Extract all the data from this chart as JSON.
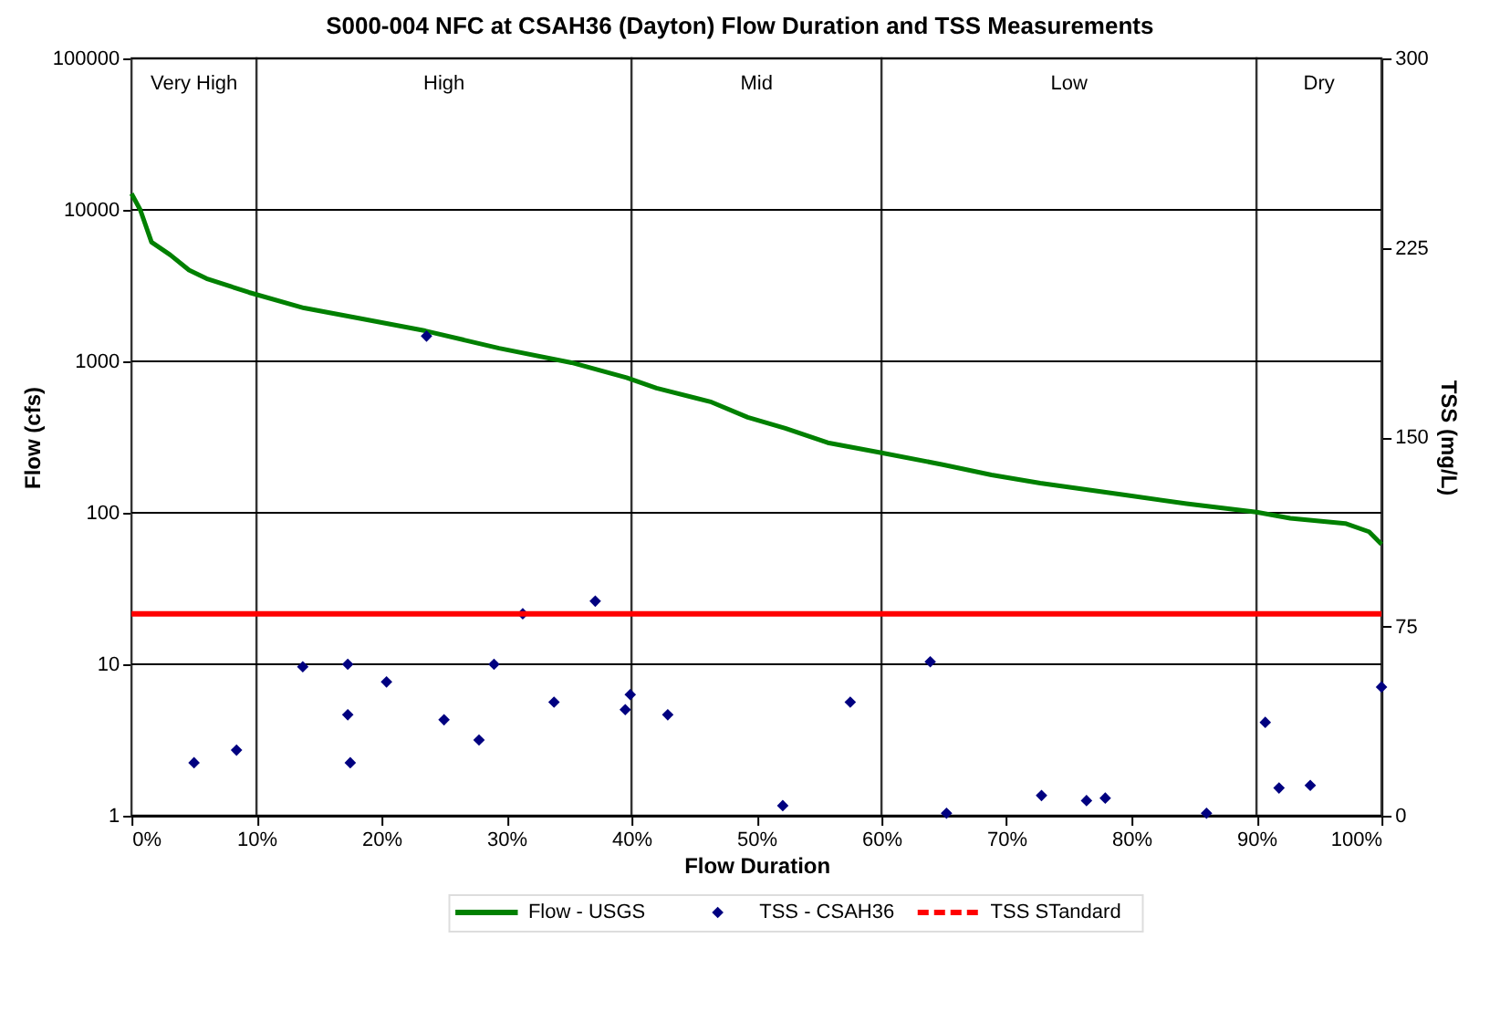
{
  "chart_data": {
    "type": "line",
    "title": "S000-004 NFC at CSAH36 (Dayton) Flow Duration and TSS Measurements",
    "xlabel": "Flow Duration",
    "ylabel": "Flow (cfs)",
    "y2label": "TSS (mg/L)",
    "xlim": [
      0,
      100
    ],
    "xticks": [
      {
        "value": 0,
        "label": "0%"
      },
      {
        "value": 10,
        "label": "10%"
      },
      {
        "value": 20,
        "label": "20%"
      },
      {
        "value": 30,
        "label": "30%"
      },
      {
        "value": 40,
        "label": "40%"
      },
      {
        "value": 50,
        "label": "50%"
      },
      {
        "value": 60,
        "label": "60%"
      },
      {
        "value": 70,
        "label": "70%"
      },
      {
        "value": 80,
        "label": "80%"
      },
      {
        "value": 90,
        "label": "90%"
      },
      {
        "value": 100,
        "label": "100%"
      }
    ],
    "ylim": [
      1,
      100000
    ],
    "yticks": [
      1,
      10,
      100,
      1000,
      10000,
      100000
    ],
    "log": "y",
    "y2lim": [
      0,
      300
    ],
    "y2ticks": [
      0,
      75,
      150,
      225,
      300
    ],
    "grid": "y",
    "legend": "bottom",
    "series": [
      {
        "name": "Flow - USGS",
        "color": "#008000",
        "marker": "none",
        "line_style": "solid",
        "x": [
          0,
          0.7,
          1.6,
          3.1,
          4.6,
          6.0,
          9.4,
          13.8,
          17.7,
          23.5,
          29.4,
          35.2,
          39.6,
          42.0,
          46.4,
          49.3,
          52.3,
          55.7,
          59.9,
          64.9,
          68.8,
          72.7,
          79.5,
          84.4,
          90.0,
          92.7,
          97.1,
          99.0,
          100
        ],
        "values": [
          12800,
          10000,
          6120,
          5040,
          4000,
          3520,
          2850,
          2250,
          1960,
          1590,
          1220,
          980,
          780,
          665,
          538,
          427,
          361,
          290,
          250,
          208,
          178,
          157,
          131,
          115,
          101,
          92,
          85,
          75,
          62
        ]
      },
      {
        "name": "TSS - CSAH36",
        "type": "scatter",
        "axis": "y2",
        "color": "#000080",
        "marker": "diamond",
        "x": [
          5.0,
          8.4,
          13.7,
          17.3,
          17.3,
          17.5,
          20.4,
          23.6,
          25.0,
          27.8,
          29.0,
          31.3,
          33.8,
          37.1,
          39.5,
          39.9,
          42.9,
          52.1,
          57.5,
          63.9,
          65.2,
          72.8,
          76.4,
          77.9,
          86.0,
          90.7,
          91.8,
          94.3,
          100
        ],
        "values": [
          21,
          26,
          59,
          60,
          40,
          21,
          53,
          190,
          38,
          30,
          60,
          80,
          45,
          85,
          42,
          48,
          40,
          4,
          45,
          61,
          1,
          8,
          6,
          7,
          1,
          37,
          11,
          12,
          51
        ]
      }
    ],
    "ref_lines": [
      {
        "axis": "y2",
        "value": 80,
        "label": "TSS STandard",
        "color": "#ff0000"
      }
    ],
    "bands": [
      {
        "axis": "x",
        "from": 0,
        "to": 10,
        "label": "Very High",
        "color": "#ffffff"
      },
      {
        "axis": "x",
        "from": 10,
        "to": 40,
        "label": "High",
        "color": "#ffffff"
      },
      {
        "axis": "x",
        "from": 40,
        "to": 60,
        "label": "Mid",
        "color": "#ffffff"
      },
      {
        "axis": "x",
        "from": 60,
        "to": 90,
        "label": "Low",
        "color": "#ffffff"
      },
      {
        "axis": "x",
        "from": 90,
        "to": 100,
        "label": "Dry",
        "color": "#ffffff"
      }
    ]
  }
}
